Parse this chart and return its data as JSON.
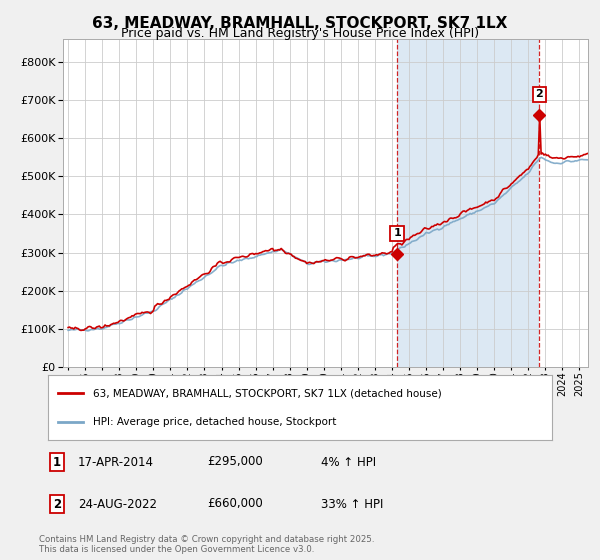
{
  "title": "63, MEADWAY, BRAMHALL, STOCKPORT, SK7 1LX",
  "subtitle": "Price paid vs. HM Land Registry's House Price Index (HPI)",
  "legend_label_red": "63, MEADWAY, BRAMHALL, STOCKPORT, SK7 1LX (detached house)",
  "legend_label_blue": "HPI: Average price, detached house, Stockport",
  "annotation1_label": "1",
  "annotation1_date": "17-APR-2014",
  "annotation1_price": "£295,000",
  "annotation1_hpi": "4% ↑ HPI",
  "annotation1_year": 2014.3,
  "annotation1_value": 295000,
  "annotation2_label": "2",
  "annotation2_date": "24-AUG-2022",
  "annotation2_price": "£660,000",
  "annotation2_hpi": "33% ↑ HPI",
  "annotation2_year": 2022.65,
  "annotation2_value": 660000,
  "footer": "Contains HM Land Registry data © Crown copyright and database right 2025.\nThis data is licensed under the Open Government Licence v3.0.",
  "ylim": [
    0,
    860000
  ],
  "xlim_start": 1994.7,
  "xlim_end": 2025.5,
  "red_color": "#cc0000",
  "blue_color": "#7ba7c7",
  "blue_fill_color": "#dce8f3",
  "background_color": "#f0f0f0",
  "plot_bg_color": "#ffffff",
  "grid_color": "#cccccc",
  "vline_color": "#cc0000",
  "title_fontsize": 11,
  "subtitle_fontsize": 9
}
